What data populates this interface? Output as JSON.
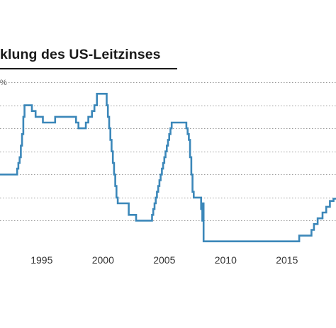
{
  "chart_data": {
    "type": "line",
    "title": "klung des US-Leitzinses",
    "unit_fragment": "%",
    "xlabel": "",
    "ylabel": "",
    "x_tick_labels": [
      "1995",
      "2000",
      "2005",
      "2010",
      "2015"
    ],
    "xlim": [
      1991.6,
      2019.0
    ],
    "ylim": [
      0,
      7
    ],
    "grid": true,
    "step": true,
    "series": [
      {
        "color": "#3b87b9",
        "points": [
          [
            1991.6,
            3.0
          ],
          [
            1993.0,
            3.0
          ],
          [
            1993.0,
            3.25
          ],
          [
            1993.1,
            3.25
          ],
          [
            1993.1,
            3.5
          ],
          [
            1993.2,
            3.5
          ],
          [
            1993.2,
            3.75
          ],
          [
            1993.3,
            3.75
          ],
          [
            1993.3,
            4.25
          ],
          [
            1993.4,
            4.25
          ],
          [
            1993.4,
            4.75
          ],
          [
            1993.5,
            4.75
          ],
          [
            1993.5,
            5.5
          ],
          [
            1993.6,
            5.5
          ],
          [
            1993.6,
            6.0
          ],
          [
            1994.2,
            6.0
          ],
          [
            1994.2,
            5.75
          ],
          [
            1994.5,
            5.75
          ],
          [
            1994.5,
            5.5
          ],
          [
            1995.1,
            5.5
          ],
          [
            1995.1,
            5.25
          ],
          [
            1996.1,
            5.25
          ],
          [
            1996.1,
            5.5
          ],
          [
            1997.8,
            5.5
          ],
          [
            1997.8,
            5.25
          ],
          [
            1998.0,
            5.25
          ],
          [
            1998.0,
            5.0
          ],
          [
            1998.6,
            5.0
          ],
          [
            1998.6,
            5.25
          ],
          [
            1998.8,
            5.25
          ],
          [
            1998.8,
            5.5
          ],
          [
            1999.1,
            5.5
          ],
          [
            1999.1,
            5.75
          ],
          [
            1999.3,
            5.75
          ],
          [
            1999.3,
            6.0
          ],
          [
            1999.5,
            6.0
          ],
          [
            1999.5,
            6.5
          ],
          [
            2000.3,
            6.5
          ],
          [
            2000.3,
            6.0
          ],
          [
            2000.4,
            6.0
          ],
          [
            2000.4,
            5.5
          ],
          [
            2000.5,
            5.5
          ],
          [
            2000.5,
            5.0
          ],
          [
            2000.6,
            5.0
          ],
          [
            2000.6,
            4.5
          ],
          [
            2000.7,
            4.5
          ],
          [
            2000.7,
            4.0
          ],
          [
            2000.8,
            4.0
          ],
          [
            2000.8,
            3.5
          ],
          [
            2000.9,
            3.5
          ],
          [
            2000.9,
            3.0
          ],
          [
            2001.0,
            3.0
          ],
          [
            2001.0,
            2.5
          ],
          [
            2001.1,
            2.5
          ],
          [
            2001.1,
            2.0
          ],
          [
            2001.2,
            2.0
          ],
          [
            2001.2,
            1.75
          ],
          [
            2002.1,
            1.75
          ],
          [
            2002.1,
            1.25
          ],
          [
            2002.7,
            1.25
          ],
          [
            2002.7,
            1.0
          ],
          [
            2004.0,
            1.0
          ],
          [
            2004.0,
            1.25
          ],
          [
            2004.1,
            1.25
          ],
          [
            2004.1,
            1.5
          ],
          [
            2004.2,
            1.5
          ],
          [
            2004.2,
            1.75
          ],
          [
            2004.3,
            1.75
          ],
          [
            2004.3,
            2.0
          ],
          [
            2004.4,
            2.0
          ],
          [
            2004.4,
            2.25
          ],
          [
            2004.5,
            2.25
          ],
          [
            2004.5,
            2.5
          ],
          [
            2004.6,
            2.5
          ],
          [
            2004.6,
            2.75
          ],
          [
            2004.7,
            2.75
          ],
          [
            2004.7,
            3.0
          ],
          [
            2004.8,
            3.0
          ],
          [
            2004.8,
            3.25
          ],
          [
            2004.9,
            3.25
          ],
          [
            2004.9,
            3.5
          ],
          [
            2005.0,
            3.5
          ],
          [
            2005.0,
            3.75
          ],
          [
            2005.1,
            3.75
          ],
          [
            2005.1,
            4.0
          ],
          [
            2005.2,
            4.0
          ],
          [
            2005.2,
            4.25
          ],
          [
            2005.3,
            4.25
          ],
          [
            2005.3,
            4.5
          ],
          [
            2005.4,
            4.5
          ],
          [
            2005.4,
            4.75
          ],
          [
            2005.5,
            4.75
          ],
          [
            2005.5,
            5.0
          ],
          [
            2005.6,
            5.0
          ],
          [
            2005.6,
            5.25
          ],
          [
            2006.8,
            5.25
          ],
          [
            2006.8,
            5.0
          ],
          [
            2006.9,
            5.0
          ],
          [
            2006.9,
            4.75
          ],
          [
            2007.0,
            4.75
          ],
          [
            2007.0,
            4.5
          ],
          [
            2007.1,
            4.5
          ],
          [
            2007.1,
            3.75
          ],
          [
            2007.2,
            3.75
          ],
          [
            2007.2,
            3.0
          ],
          [
            2007.3,
            3.0
          ],
          [
            2007.3,
            2.25
          ],
          [
            2007.4,
            2.25
          ],
          [
            2007.4,
            2.0
          ],
          [
            2008.0,
            2.0
          ],
          [
            2008.0,
            1.5
          ],
          [
            2008.1,
            1.5
          ],
          [
            2008.1,
            1.0
          ],
          [
            2008.15,
            1.0
          ],
          [
            2008.15,
            1.75
          ],
          [
            2008.2,
            1.75
          ],
          [
            2008.2,
            0.1
          ],
          [
            2016.0,
            0.1
          ],
          [
            2016.0,
            0.35
          ],
          [
            2017.0,
            0.35
          ],
          [
            2017.0,
            0.6
          ],
          [
            2017.2,
            0.6
          ],
          [
            2017.2,
            0.85
          ],
          [
            2017.5,
            0.85
          ],
          [
            2017.5,
            1.1
          ],
          [
            2017.9,
            1.1
          ],
          [
            2017.9,
            1.35
          ],
          [
            2018.2,
            1.35
          ],
          [
            2018.2,
            1.6
          ],
          [
            2018.5,
            1.6
          ],
          [
            2018.5,
            1.85
          ],
          [
            2018.8,
            1.85
          ],
          [
            2018.8,
            1.95
          ],
          [
            2019.0,
            1.95
          ]
        ]
      }
    ]
  }
}
